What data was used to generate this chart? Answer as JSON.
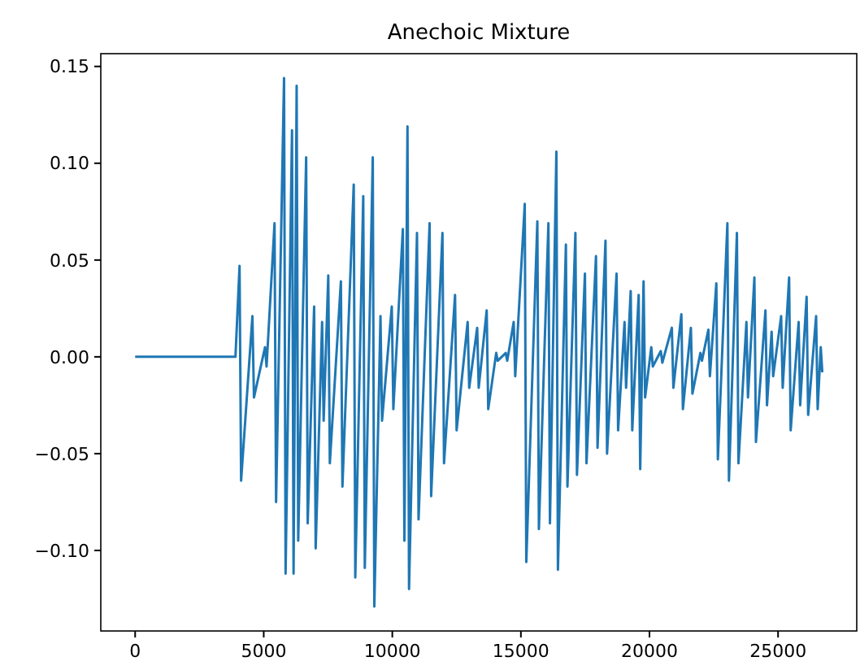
{
  "chart_data": {
    "type": "line",
    "title": "Anechoic Mixture",
    "xlim": [
      -1336,
      28060
    ],
    "ylim": [
      -0.1416,
      0.1566
    ],
    "xticks": [
      0,
      5000,
      10000,
      15000,
      20000,
      25000
    ],
    "yticks": [
      {
        "value": -0.1,
        "label": "−0.10"
      },
      {
        "value": -0.05,
        "label": "−0.05"
      },
      {
        "value": 0,
        "label": "0.00"
      },
      {
        "value": 0.05,
        "label": "0.05"
      },
      {
        "value": 0.1,
        "label": "0.10"
      },
      {
        "value": 0.15,
        "label": "0.15"
      }
    ],
    "marker": "none",
    "line_style": "solid",
    "series": [
      {
        "color": "#1f77b4",
        "x": [
          0,
          3900,
          4060,
          4120,
          4560,
          4620,
          5050,
          5110,
          5420,
          5480,
          5790,
          5850,
          6100,
          6160,
          6280,
          6340,
          6650,
          6710,
          6960,
          7020,
          7270,
          7330,
          7510,
          7570,
          8000,
          8060,
          8500,
          8560,
          8870,
          8930,
          9240,
          9300,
          9540,
          9600,
          9980,
          10040,
          10410,
          10470,
          10590,
          10650,
          10960,
          11020,
          11450,
          11510,
          11950,
          12010,
          12440,
          12500,
          12930,
          12990,
          13300,
          13360,
          13670,
          13730,
          14040,
          14100,
          14410,
          14470,
          14720,
          14780,
          15150,
          15210,
          15640,
          15700,
          16070,
          16130,
          16380,
          16440,
          16750,
          16810,
          17120,
          17180,
          17490,
          17550,
          17920,
          17980,
          18290,
          18350,
          18720,
          18780,
          19030,
          19090,
          19270,
          19330,
          19580,
          19640,
          19770,
          19830,
          20070,
          20130,
          20440,
          20500,
          20870,
          20930,
          21240,
          21300,
          21610,
          21670,
          21980,
          22040,
          22290,
          22350,
          22600,
          22660,
          23030,
          23090,
          23400,
          23460,
          23770,
          23830,
          24080,
          24140,
          24510,
          24570,
          24750,
          24810,
          25120,
          25180,
          25430,
          25490,
          25800,
          25860,
          26110,
          26170,
          26480,
          26540,
          26660,
          26720
        ],
        "values": [
          0,
          0,
          0.047,
          -0.064,
          0.021,
          -0.021,
          0.005,
          -0.005,
          0.069,
          -0.075,
          0.144,
          -0.112,
          0.117,
          -0.112,
          0.14,
          -0.095,
          0.103,
          -0.086,
          0.026,
          -0.099,
          0.018,
          -0.033,
          0.042,
          -0.055,
          0.039,
          -0.067,
          0.089,
          -0.114,
          0.083,
          -0.109,
          0.103,
          -0.129,
          0.021,
          -0.033,
          0.026,
          -0.027,
          0.066,
          -0.095,
          0.119,
          -0.12,
          0.064,
          -0.084,
          0.069,
          -0.072,
          0.064,
          -0.055,
          0.032,
          -0.038,
          0.018,
          -0.016,
          0.015,
          -0.016,
          0.024,
          -0.027,
          0.002,
          -0.002,
          0.002,
          -0.002,
          0.018,
          -0.01,
          0.079,
          -0.106,
          0.07,
          -0.089,
          0.069,
          -0.086,
          0.106,
          -0.11,
          0.058,
          -0.067,
          0.064,
          -0.061,
          0.043,
          -0.055,
          0.052,
          -0.047,
          0.06,
          -0.05,
          0.043,
          -0.038,
          0.018,
          -0.016,
          0.034,
          -0.038,
          0.032,
          -0.058,
          0.039,
          -0.021,
          0.005,
          -0.005,
          0.003,
          -0.003,
          0.015,
          -0.016,
          0.022,
          -0.027,
          0.015,
          -0.019,
          0.002,
          -0.002,
          0.014,
          -0.01,
          0.038,
          -0.053,
          0.069,
          -0.064,
          0.064,
          -0.055,
          0.018,
          -0.021,
          0.041,
          -0.044,
          0.024,
          -0.025,
          0.013,
          -0.01,
          0.021,
          -0.016,
          0.041,
          -0.038,
          0.018,
          -0.025,
          0.031,
          -0.03,
          0.021,
          -0.027,
          0.005,
          -0.008
        ]
      }
    ]
  }
}
